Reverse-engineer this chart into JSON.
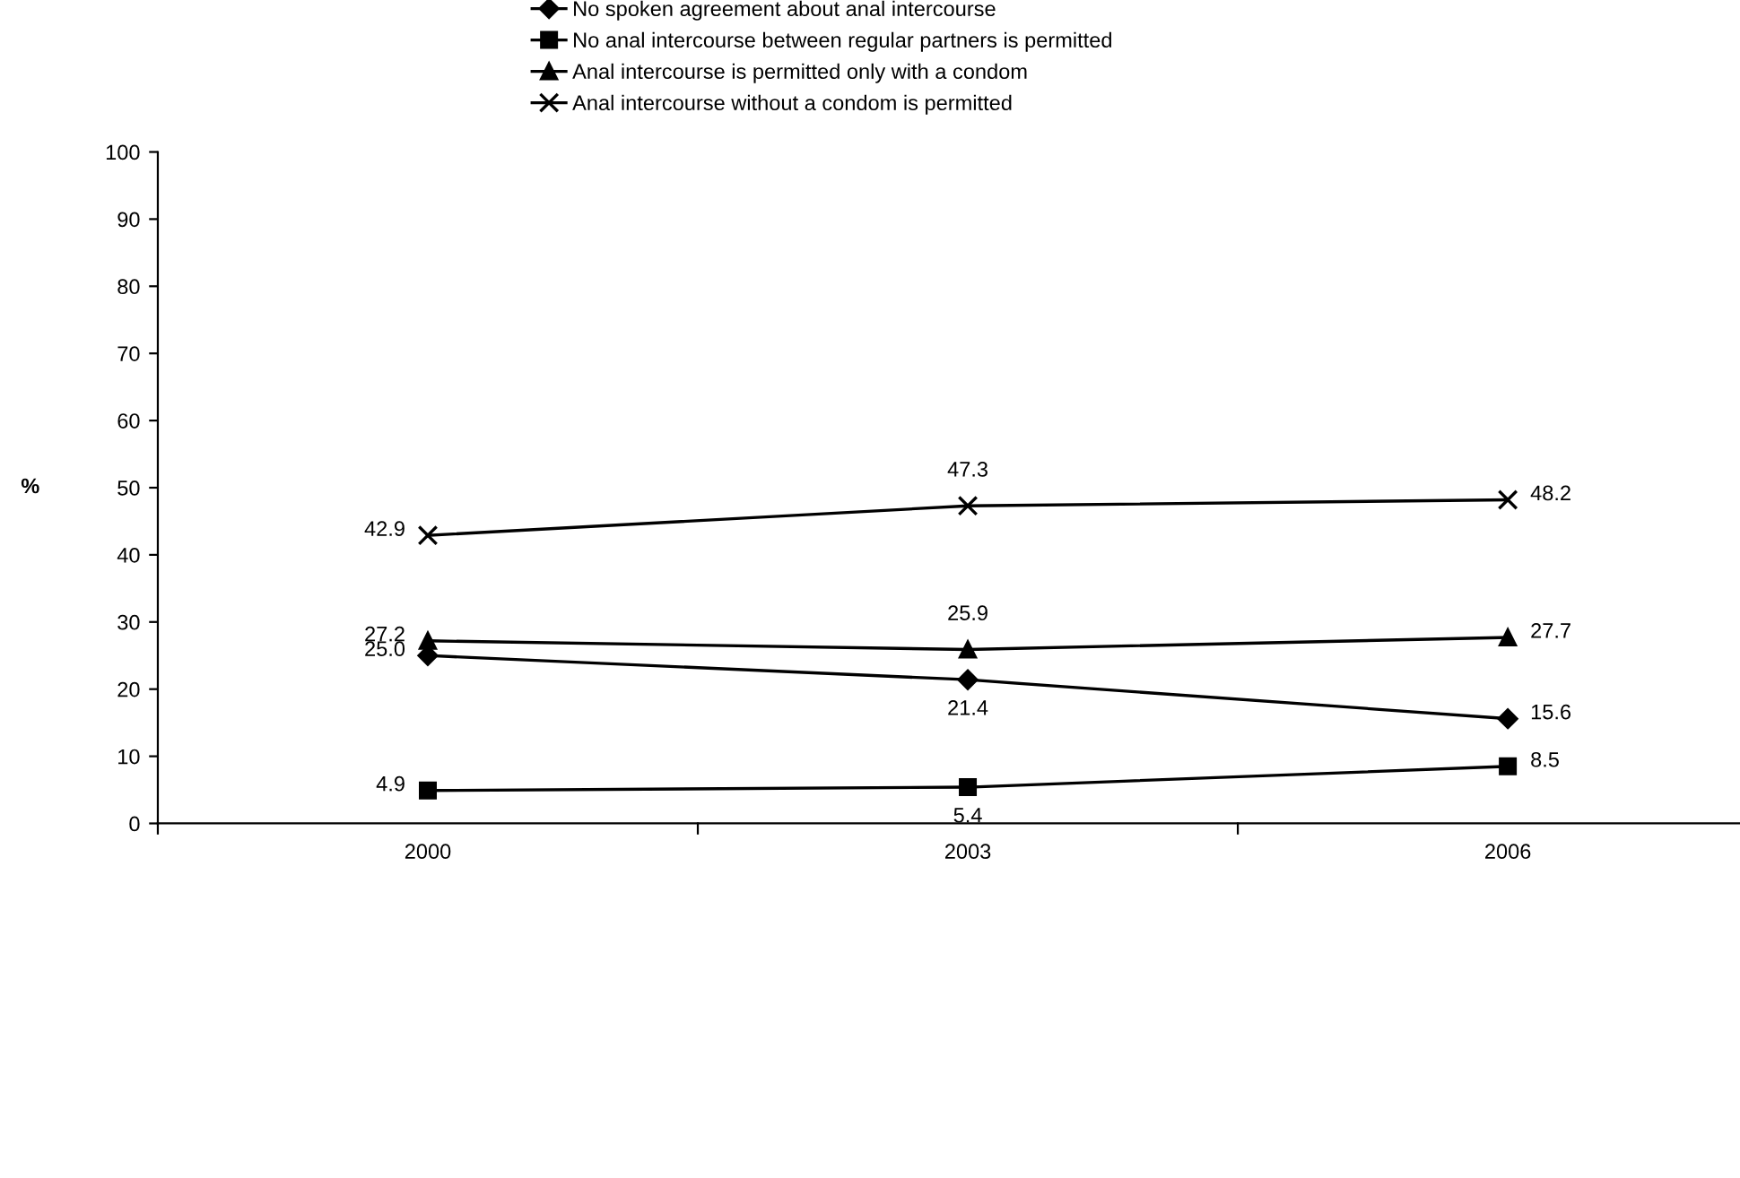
{
  "chart_data": {
    "type": "line",
    "ylabel": "%",
    "categories": [
      "2000",
      "2003",
      "2006"
    ],
    "series": [
      {
        "name": "No spoken agreement about anal intercourse",
        "color": "#000000",
        "marker": "diamond",
        "values": [
          25.0,
          21.4,
          15.6
        ],
        "value_labels": [
          "25.0",
          "21.4",
          "15.6"
        ]
      },
      {
        "name": "No anal intercourse between regular partners is permitted",
        "color": "#000000",
        "marker": "square",
        "values": [
          4.9,
          5.4,
          8.5
        ],
        "value_labels": [
          "4.9",
          "5.4",
          "8.5"
        ]
      },
      {
        "name": "Anal intercourse is permitted only with a condom",
        "color": "#000000",
        "marker": "triangle",
        "values": [
          27.2,
          25.9,
          27.7
        ],
        "value_labels": [
          "27.2",
          "25.9",
          "27.7"
        ]
      },
      {
        "name": "Anal intercourse without a condom is permitted",
        "color": "#000000",
        "marker": "cross",
        "values": [
          42.9,
          47.3,
          48.2
        ],
        "value_labels": [
          "42.9",
          "47.3",
          "48.2"
        ]
      }
    ],
    "ylim": [
      0,
      100
    ],
    "yticks": [
      0,
      10,
      20,
      30,
      40,
      50,
      60,
      70,
      80,
      90,
      100
    ],
    "grid": false,
    "legend": "top",
    "line_style": "solid"
  }
}
